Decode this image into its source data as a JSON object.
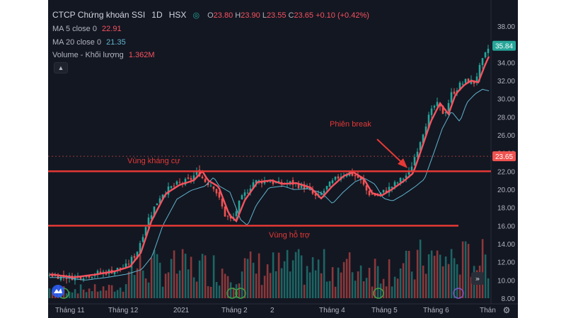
{
  "header": {
    "symbol": "CTCP Chứng khoán SSI",
    "interval": "1D",
    "exchange": "HSX",
    "o_label": "O",
    "o": "23.80",
    "h_label": "H",
    "h": "23.90",
    "l_label": "L",
    "l": "23.55",
    "c_label": "C",
    "c": "23.65",
    "change": "+0.10 (+0.42%)"
  },
  "indicators": {
    "ma5_label": "MA 5 close 0",
    "ma5_value": "22.91",
    "ma20_label": "MA 20 close 0",
    "ma20_value": "21.35",
    "volume_label": "Volume - Khối lượng",
    "volume_value": "1.362M"
  },
  "annotations": {
    "resistance": "Vùng kháng cự",
    "support": "Vùng hỗ trợ",
    "break": "Phiên break"
  },
  "price_badges": {
    "top": "35.84",
    "current": "23.65"
  },
  "colors": {
    "background": "#131722",
    "up": "#26a69a",
    "down": "#ef5350",
    "ma5": "#f7525f",
    "ma20": "#5fb5ce",
    "annotation": "#e53935"
  },
  "icons": [
    "chart-logo-icon",
    "settings-icon"
  ],
  "chart_data": {
    "type": "candlestick",
    "y_ticks": [
      "38.00",
      "36.00",
      "34.00",
      "32.00",
      "30.00",
      "28.00",
      "26.00",
      "24.00",
      "22.00",
      "20.00",
      "18.00",
      "16.00",
      "14.00",
      "12.00",
      "10.00",
      "8.00"
    ],
    "x_ticks": [
      "Tháng 11",
      "Tháng 12",
      "2021",
      "Tháng 2",
      "2",
      "Tháng 4",
      "Tháng 5",
      "Tháng 6",
      "Thán"
    ],
    "ylim": [
      8,
      38
    ],
    "series": [
      {
        "name": "MA 5 close 0",
        "x": [
          "Tháng 11",
          "Tháng 12",
          "2021",
          "Tháng 2",
          "Tháng 4",
          "Tháng 5",
          "Tháng 6",
          "Thán"
        ],
        "values": [
          10.5,
          11.3,
          19.0,
          19.0,
          20.1,
          19.8,
          27.5,
          34.6
        ]
      },
      {
        "name": "MA 20 close 0",
        "x": [
          "Tháng 11",
          "Tháng 12",
          "2021",
          "Tháng 2",
          "Tháng 4",
          "Tháng 5",
          "Tháng 6",
          "Thán"
        ],
        "values": [
          10.2,
          11.0,
          16.0,
          19.6,
          20.0,
          19.9,
          24.0,
          31.5
        ]
      }
    ],
    "resistance_level": 22.0,
    "support_level": 16.0,
    "last_close": 23.65,
    "high_price": 35.84
  }
}
